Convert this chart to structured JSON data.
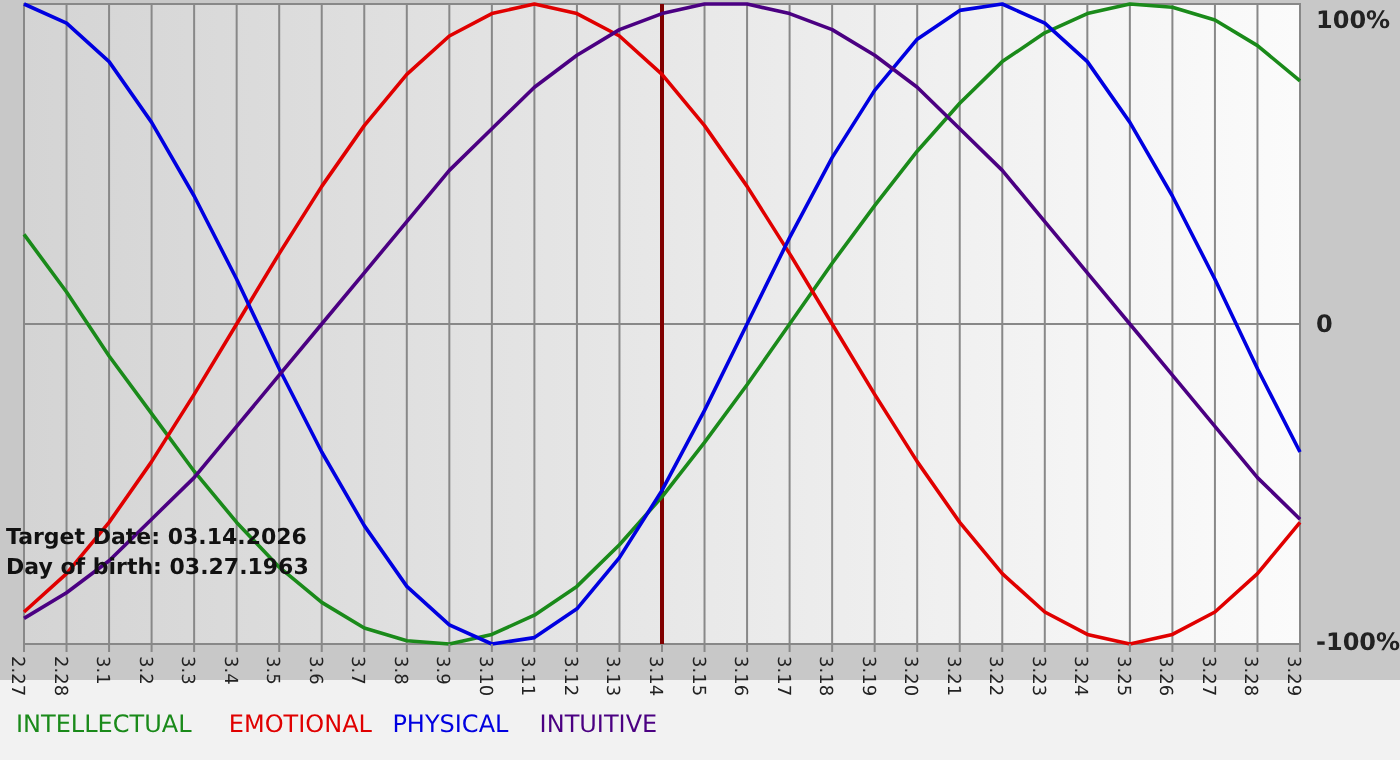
{
  "chart_data": {
    "type": "line",
    "categories": [
      "2.27",
      "2.28",
      "3.1",
      "3.2",
      "3.3",
      "3.4",
      "3.5",
      "3.6",
      "3.7",
      "3.8",
      "3.9",
      "3.10",
      "3.11",
      "3.12",
      "3.13",
      "3.14",
      "3.15",
      "3.16",
      "3.17",
      "3.18",
      "3.19",
      "3.20",
      "3.21",
      "3.22",
      "3.23",
      "3.24",
      "3.25",
      "3.26",
      "3.27",
      "3.28",
      "3.29"
    ],
    "series": [
      {
        "name": "INTELLECTUAL",
        "color": "#1a8a1a",
        "values": [
          28,
          10,
          -10,
          -28,
          -46,
          -62,
          -76,
          -87,
          -95,
          -99,
          -100,
          -97,
          -91,
          -82,
          -69,
          -54,
          -37,
          -19,
          0,
          19,
          37,
          54,
          69,
          82,
          91,
          97,
          100,
          99,
          95,
          87,
          76
        ]
      },
      {
        "name": "EMOTIONAL",
        "color": "#e00000",
        "values": [
          -90,
          -78,
          -62,
          -43,
          -22,
          0,
          22,
          43,
          62,
          78,
          90,
          97,
          100,
          97,
          90,
          78,
          62,
          43,
          22,
          0,
          -22,
          -43,
          -62,
          -78,
          -90,
          -97,
          -100,
          -97,
          -90,
          -78,
          -62
        ]
      },
      {
        "name": "PHYSICAL",
        "color": "#0000e0",
        "values": [
          100,
          94,
          82,
          63,
          40,
          14,
          -14,
          -40,
          -63,
          -82,
          -94,
          -100,
          -98,
          -89,
          -73,
          -52,
          -27,
          0,
          27,
          52,
          73,
          89,
          98,
          100,
          94,
          82,
          63,
          40,
          14,
          -14,
          -40
        ]
      },
      {
        "name": "INTUITIVE",
        "color": "#4b0082",
        "values": [
          -92,
          -84,
          -74,
          -61,
          -48,
          -32,
          -16,
          0,
          16,
          32,
          48,
          61,
          74,
          84,
          92,
          97,
          100,
          100,
          97,
          92,
          84,
          74,
          61,
          48,
          32,
          16,
          0,
          -16,
          -32,
          -48,
          -61
        ]
      }
    ],
    "ylim": [
      -100,
      100
    ],
    "yticks": [
      {
        "value": -100,
        "label": "-100%"
      },
      0,
      {
        "value": 100,
        "label": "100%"
      }
    ],
    "grid": true,
    "legend": "bottom",
    "marker": "none",
    "line_style": "solid",
    "ref_lines": [
      {
        "axis": "x",
        "value": "3.14",
        "color": "#800000"
      }
    ],
    "annotations": [
      "Target Date: 03.14.2026",
      "Day of birth: 03.27.1963"
    ]
  }
}
